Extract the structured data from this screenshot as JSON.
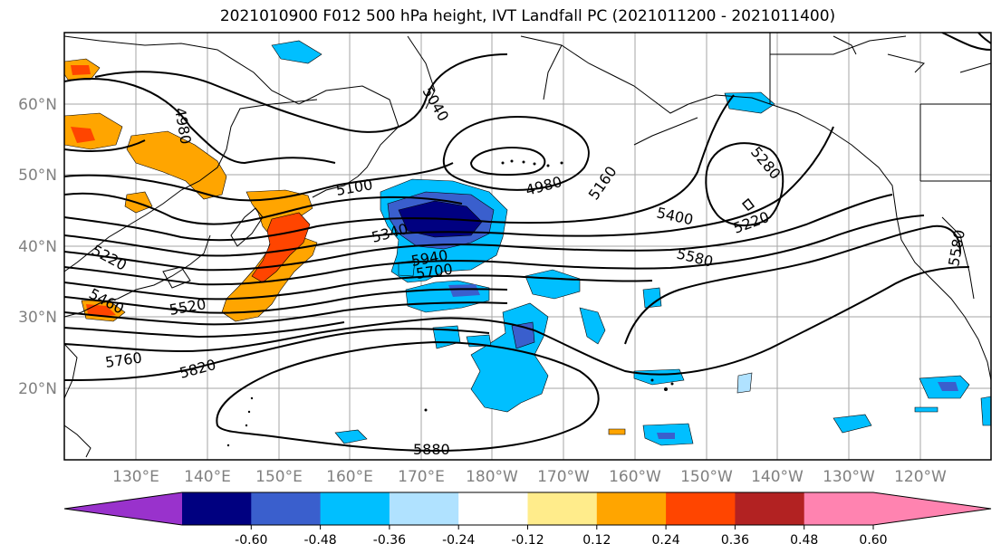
{
  "title": "2021010900 F012 500 hPa height, IVT Landfall PC (2021011200 - 2021011400)",
  "map": {
    "lat_labels": [
      "60°N",
      "50°N",
      "40°N",
      "30°N",
      "20°N"
    ],
    "lon_labels": [
      "130°E",
      "140°E",
      "150°E",
      "160°E",
      "170°E",
      "180°W",
      "170°W",
      "160°W",
      "150°W",
      "140°W",
      "130°W",
      "120°W"
    ],
    "contour_labels": [
      "4980",
      "5040",
      "4980",
      "5100",
      "5160",
      "5280",
      "5220",
      "5400",
      "5340",
      "5580",
      "5220",
      "5460",
      "5940",
      "5700",
      "5520",
      "5760",
      "5820",
      "5880",
      "5580",
      "5340",
      "5520"
    ]
  },
  "colorbar": {
    "colors": [
      "#9932cc",
      "#000080",
      "#3a5fcd",
      "#00bfff",
      "#b0e2ff",
      "#ffffff",
      "#ffec8b",
      "#ffa500",
      "#ff4500",
      "#b22222",
      "#ff83b0",
      "#ff83b0"
    ],
    "ticks": [
      "-0.60",
      "-0.48",
      "-0.36",
      "-0.24",
      "-0.12",
      "0.12",
      "0.24",
      "0.36",
      "0.48",
      "0.60"
    ]
  }
}
